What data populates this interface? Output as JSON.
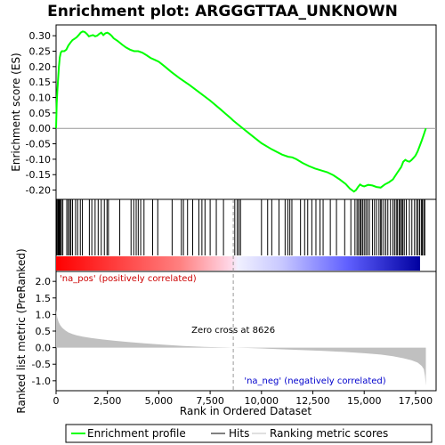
{
  "chart_data": {
    "type": "line",
    "title": "Enrichment plot: ARGGGTTAA_UNKNOWN",
    "panels": {
      "enrichment": {
        "ylabel": "Enrichment score (ES)",
        "ylim": [
          -0.23,
          0.335
        ],
        "yticks": [
          -0.2,
          -0.15,
          -0.1,
          -0.05,
          0.0,
          0.05,
          0.1,
          0.15,
          0.2,
          0.25,
          0.3
        ],
        "ytick_labels": [
          "-0.20",
          "-0.15",
          "-0.10",
          "-0.05",
          "0.00",
          "0.05",
          "0.10",
          "0.15",
          "0.20",
          "0.25",
          "0.30"
        ],
        "series": [
          {
            "name": "Enrichment profile",
            "color": "#00ff00",
            "x": [
              0,
              30,
              60,
              100,
              140,
              180,
              230,
              280,
              400,
              500,
              600,
              700,
              800,
              900,
              1000,
              1100,
              1200,
              1300,
              1400,
              1500,
              1600,
              1700,
              1800,
              1900,
              2000,
              2100,
              2200,
              2300,
              2400,
              2500,
              2600,
              2700,
              2800,
              3000,
              3200,
              3400,
              3600,
              3800,
              4000,
              4200,
              4400,
              4600,
              4800,
              5000,
              5300,
              5600,
              6000,
              6500,
              7000,
              7500,
              8000,
              8500,
              8626,
              9000,
              9500,
              10000,
              10500,
              11000,
              11300,
              11500,
              11700,
              12000,
              12300,
              12600,
              12900,
              13200,
              13500,
              13800,
              14100,
              14300,
              14500,
              14600,
              14700,
              14800,
              14900,
              15000,
              15200,
              15400,
              15600,
              15800,
              16000,
              16200,
              16400,
              16600,
              16800,
              16900,
              17000,
              17100,
              17200,
              17300,
              17400,
              17500,
              17600,
              17700,
              17800,
              17900,
              18000
            ],
            "y": [
              0.0,
              0.08,
              0.12,
              0.16,
              0.2,
              0.23,
              0.245,
              0.25,
              0.25,
              0.255,
              0.268,
              0.278,
              0.286,
              0.29,
              0.295,
              0.302,
              0.31,
              0.314,
              0.312,
              0.306,
              0.298,
              0.3,
              0.302,
              0.298,
              0.3,
              0.306,
              0.31,
              0.302,
              0.308,
              0.31,
              0.306,
              0.3,
              0.292,
              0.283,
              0.272,
              0.262,
              0.255,
              0.25,
              0.25,
              0.245,
              0.237,
              0.228,
              0.222,
              0.216,
              0.2,
              0.183,
              0.163,
              0.14,
              0.115,
              0.09,
              0.062,
              0.033,
              0.025,
              0.005,
              -0.022,
              -0.048,
              -0.068,
              -0.085,
              -0.092,
              -0.094,
              -0.1,
              -0.112,
              -0.122,
              -0.13,
              -0.136,
              -0.142,
              -0.152,
              -0.165,
              -0.18,
              -0.195,
              -0.205,
              -0.2,
              -0.19,
              -0.182,
              -0.186,
              -0.188,
              -0.183,
              -0.185,
              -0.19,
              -0.192,
              -0.182,
              -0.175,
              -0.165,
              -0.145,
              -0.125,
              -0.108,
              -0.102,
              -0.106,
              -0.108,
              -0.103,
              -0.096,
              -0.088,
              -0.075,
              -0.058,
              -0.04,
              -0.02,
              0.0
            ]
          }
        ]
      },
      "hits": {
        "legend_label": "Hits",
        "positions": [
          40,
          90,
          130,
          170,
          210,
          260,
          330,
          520,
          590,
          660,
          720,
          800,
          950,
          1050,
          1180,
          1280,
          1620,
          1740,
          1900,
          2050,
          2200,
          2350,
          2480,
          2550,
          3100,
          3650,
          3780,
          3900,
          4000,
          4120,
          4280,
          4700,
          4950,
          5650,
          6100,
          6200,
          6400,
          6650,
          6950,
          7100,
          7250,
          7500,
          7800,
          8150,
          8700,
          8820,
          8900,
          8980,
          10000,
          10300,
          10500,
          10850,
          11150,
          11280,
          11380,
          11480,
          11900,
          12100,
          12250,
          12450,
          12650,
          12850,
          13000,
          13350,
          13650,
          14050,
          14350,
          14550,
          14650,
          14720,
          14800,
          14850,
          14920,
          15000,
          15080,
          15160,
          15250,
          15400,
          15500,
          15600,
          15720,
          15800,
          15850,
          15950,
          16050,
          16150,
          16280,
          16400,
          16480,
          16560,
          16620,
          16700,
          16760,
          16820,
          16880,
          16950,
          17050,
          17200,
          17320,
          17450,
          17550,
          17620,
          17700,
          17780,
          17830,
          17900,
          17950
        ]
      },
      "metric": {
        "ylabel": "Ranked list metric (PreRanked)",
        "xlabel": "Rank in Ordered Dataset",
        "ylim": [
          -1.3,
          2.3
        ],
        "yticks": [
          -1.0,
          -0.5,
          0.0,
          0.5,
          1.0,
          1.5,
          2.0
        ],
        "ytick_labels": [
          "-1.0",
          "-0.5",
          "0.0",
          "0.5",
          "1.0",
          "1.5",
          "2.0"
        ],
        "fill_color": "#c0c0c0",
        "x": [
          0,
          20,
          60,
          120,
          200,
          300,
          450,
          600,
          800,
          1000,
          1300,
          1700,
          2200,
          2800,
          3500,
          4300,
          5200,
          6200,
          7200,
          8000,
          8626,
          9300,
          10000,
          11000,
          12000,
          13000,
          14000,
          15000,
          15800,
          16400,
          16900,
          17300,
          17600,
          17800,
          17900,
          17960,
          18000
        ],
        "y": [
          1.15,
          1.05,
          0.9,
          0.78,
          0.68,
          0.6,
          0.52,
          0.46,
          0.41,
          0.37,
          0.33,
          0.29,
          0.25,
          0.21,
          0.17,
          0.13,
          0.09,
          0.05,
          0.025,
          0.01,
          0.0,
          -0.01,
          -0.025,
          -0.05,
          -0.075,
          -0.1,
          -0.13,
          -0.17,
          -0.21,
          -0.26,
          -0.32,
          -0.38,
          -0.45,
          -0.55,
          -0.65,
          -0.85,
          -1.15
        ]
      }
    },
    "xlim": [
      0,
      18500
    ],
    "xticks": [
      0,
      2500,
      5000,
      7500,
      10000,
      12500,
      15000,
      17500
    ],
    "xtick_labels": [
      "0",
      "2,500",
      "5,000",
      "7,500",
      "10,000",
      "12,500",
      "15,000",
      "17,500"
    ],
    "ranked_list_length": 18000,
    "zero_cross": 8626,
    "annotations": {
      "pos_label": "'na_pos' (positively correlated)",
      "neg_label": "'na_neg' (negatively correlated)",
      "zero_cross_label": "Zero cross at 8626",
      "pos_color": "#cc0000",
      "neg_color": "#0000cc"
    },
    "legend": {
      "placement": "bottom",
      "entries": [
        {
          "label": "Enrichment profile",
          "color": "#00ff00"
        },
        {
          "label": "Hits",
          "color": "#000000"
        },
        {
          "label": "Ranking metric scores",
          "color": "#c0c0c0"
        }
      ]
    }
  }
}
